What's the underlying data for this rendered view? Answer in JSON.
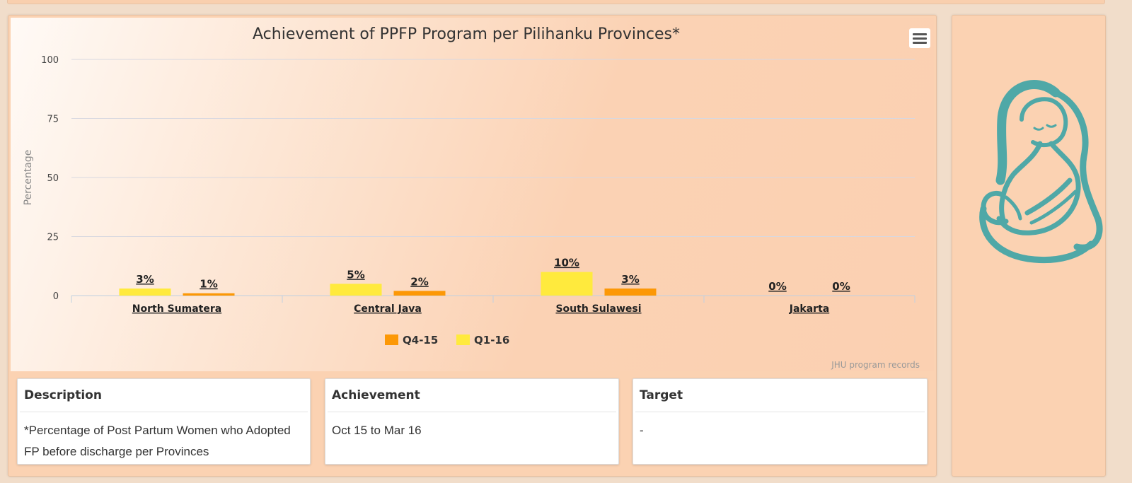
{
  "chart_data": {
    "type": "bar",
    "title": "Achievement of PPFP Program per Pilihanku Provinces*",
    "ylabel": "Percentage",
    "xlabel": "",
    "ylim": [
      0,
      100
    ],
    "yticks": [
      "0",
      "25",
      "50",
      "75",
      "100"
    ],
    "categories": [
      "North Sumatera",
      "Central Java",
      "South Sulawesi",
      "Jakarta"
    ],
    "series": [
      {
        "name": "Q1-16",
        "color": "#ffea3d",
        "values": [
          3,
          5,
          10,
          0
        ],
        "labels": [
          "3%",
          "5%",
          "10%",
          "0%"
        ]
      },
      {
        "name": "Q4-15",
        "color": "#fc9806",
        "values": [
          1,
          2,
          3,
          0
        ],
        "labels": [
          "1%",
          "2%",
          "3%",
          "0%"
        ]
      }
    ],
    "legend_order": [
      "Q4-15",
      "Q1-16"
    ],
    "legend_placement": "bottom-center",
    "grid": true,
    "credit": "JHU program records"
  },
  "cards": [
    {
      "title": "Description",
      "body": "*Percentage of Post Partum Women who Adopted FP before discharge per Provinces"
    },
    {
      "title": "Achievement",
      "body": "Oct 15 to Mar 16"
    },
    {
      "title": "Target",
      "body": "-"
    }
  ],
  "side_panel": {
    "illustration": "mother-breastfeeding-icon",
    "illustration_color": "#4fa8a7"
  }
}
